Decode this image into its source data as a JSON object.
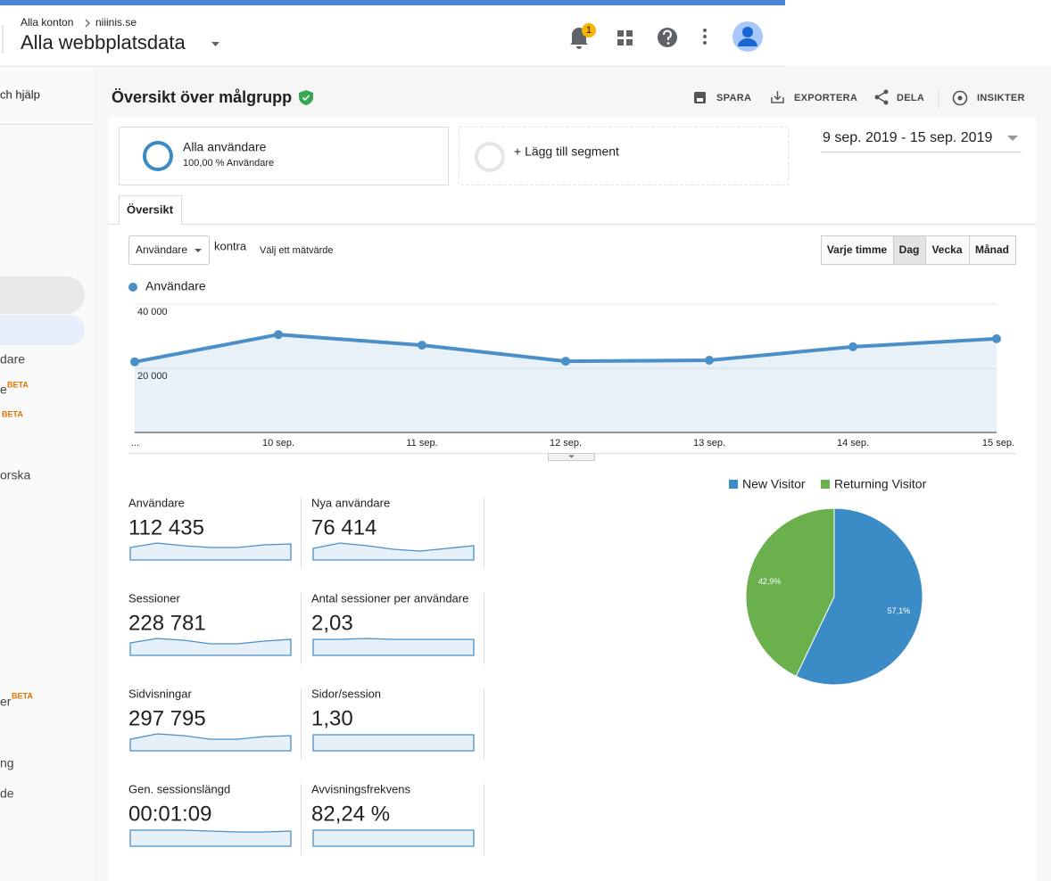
{
  "header": {
    "account": "Alla konton",
    "property": "niiinis.se",
    "view": "Alla webbplatsdata",
    "notification_count": "1"
  },
  "sidebar": {
    "search_placeholder": "ch hjälp",
    "items": [
      {
        "label": "dare"
      },
      {
        "label": "e",
        "badge": "BETA"
      },
      {
        "badge": "BETA"
      },
      {
        "label": "orska"
      },
      {
        "label": "er",
        "badge": "BETA"
      },
      {
        "label": "ng"
      },
      {
        "label": "de"
      }
    ]
  },
  "report": {
    "title": "Översikt över målgrupp",
    "actions": [
      "SPARA",
      "EXPORTERA",
      "DELA",
      "INSIKTER"
    ],
    "segment": {
      "name": "Alla användare",
      "detail": "100,00 % Användare"
    },
    "add_segment": "+ Lägg till segment",
    "date_range": "9 sep. 2019 - 15 sep. 2019",
    "tab": "Översikt",
    "metric_selector": "Användare",
    "versus": "kontra",
    "choose_metric": "Välj ett mätvärde",
    "granularity": [
      "Varje timme",
      "Dag",
      "Vecka",
      "Månad"
    ],
    "active_granularity": "Dag",
    "metrics": [
      {
        "label": "Användare",
        "value": "112 435"
      },
      {
        "label": "Nya användare",
        "value": "76 414"
      },
      {
        "label": "Sessioner",
        "value": "228 781"
      },
      {
        "label": "Antal sessioner per användare",
        "value": "2,03"
      },
      {
        "label": "Sidvisningar",
        "value": "297 795"
      },
      {
        "label": "Sidor/session",
        "value": "1,30"
      },
      {
        "label": "Gen. sessionslängd",
        "value": "00:01:09"
      },
      {
        "label": "Avvisningsfrekvens",
        "value": "82,24 %"
      }
    ]
  },
  "chart_data": [
    {
      "type": "line",
      "categories": [
        "...",
        "10 sep.",
        "11 sep.",
        "12 sep.",
        "13 sep.",
        "14 sep.",
        "15 sep."
      ],
      "series": [
        {
          "name": "Användare",
          "color": "#4a8fc7",
          "values": [
            22000,
            30500,
            27200,
            22200,
            22500,
            26700,
            29200
          ]
        }
      ],
      "ylim": [
        0,
        40000
      ],
      "yticks": [
        {
          "value": 20000,
          "label": "20 000"
        },
        {
          "value": 40000,
          "label": "40 000"
        }
      ],
      "grid": true
    },
    {
      "type": "pie",
      "categories": [
        "New Visitor",
        "Returning Visitor"
      ],
      "values": [
        57.1,
        42.9
      ],
      "value_labels": [
        "57,1%",
        "42,9%"
      ],
      "colors": [
        "#3b8bc6",
        "#6ab04c"
      ]
    }
  ]
}
